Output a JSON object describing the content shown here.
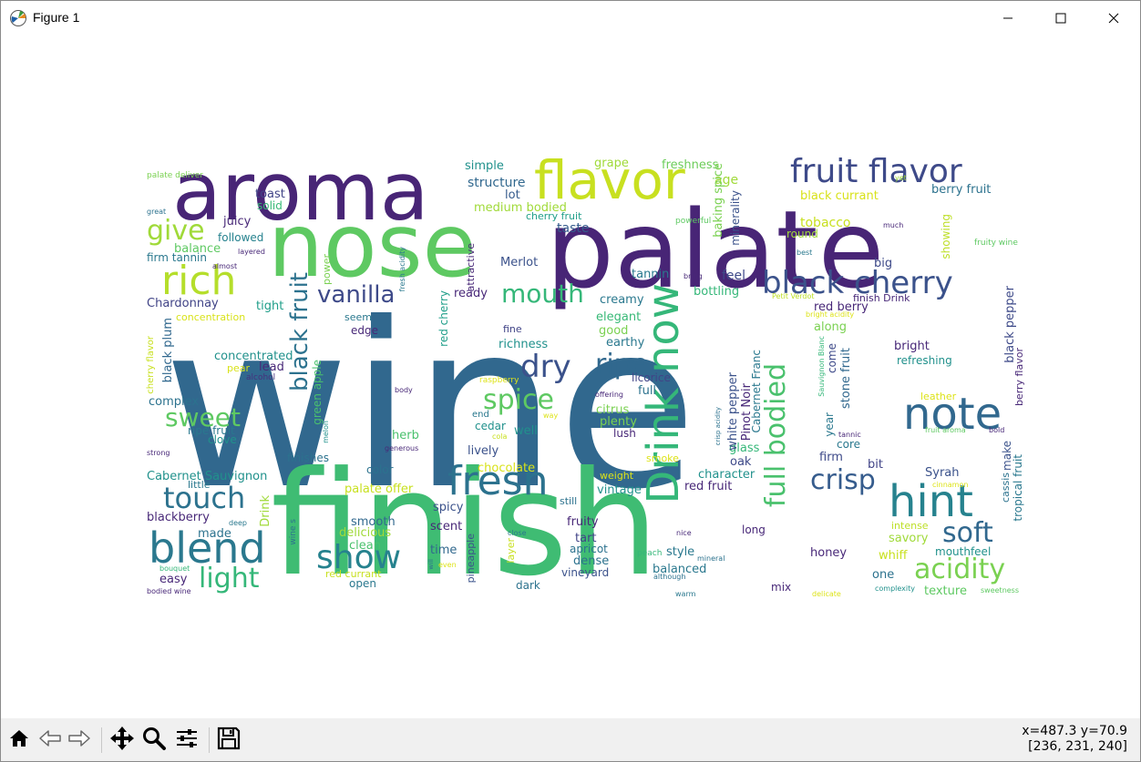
{
  "window": {
    "title": "Figure 1"
  },
  "toolbar": {
    "buttons": [
      {
        "name": "home-icon"
      },
      {
        "name": "back-icon"
      },
      {
        "name": "forward-icon"
      },
      {
        "name": "pan-icon"
      },
      {
        "name": "zoom-icon"
      },
      {
        "name": "configure-subplots-icon"
      },
      {
        "name": "save-icon"
      }
    ],
    "coords_line1": "x=487.3 y=70.9",
    "coords_line2": "[236, 231, 240]"
  },
  "colors": {
    "purple": "#440154",
    "indigo": "#3b528b",
    "blue": "#31688e",
    "teal": "#21918c",
    "green": "#35b779",
    "bright_green": "#5ec962",
    "lime": "#b5de2b",
    "yellow": "#dde318"
  },
  "wordcloud": {
    "words": [
      {
        "text": "wine",
        "c": "#31688e"
      },
      {
        "text": "finish",
        "c": "#3fbc73"
      },
      {
        "text": "palate",
        "c": "#482576"
      },
      {
        "text": "nose",
        "c": "#5ec962"
      },
      {
        "text": "aroma",
        "c": "#482576"
      },
      {
        "text": "flavor",
        "c": "#c8e020"
      },
      {
        "text": "fruit flavor",
        "c": "#3e4a89"
      },
      {
        "text": "black cherry",
        "c": "#3b528b"
      },
      {
        "text": "rich",
        "c": "#b5de2b"
      },
      {
        "text": "give",
        "c": "#a0da39"
      },
      {
        "text": "note",
        "c": "#31688e"
      },
      {
        "text": "hint",
        "c": "#26828e"
      },
      {
        "text": "Drink now",
        "c": "#35b779"
      },
      {
        "text": "fresh",
        "c": "#2c728e"
      },
      {
        "text": "blend",
        "c": "#2a788e"
      },
      {
        "text": "touch",
        "c": "#2c728e"
      },
      {
        "text": "show",
        "c": "#26828e"
      },
      {
        "text": "soft",
        "c": "#31688e"
      },
      {
        "text": "crisp",
        "c": "#365c8d"
      },
      {
        "text": "acidity",
        "c": "#7ad151"
      },
      {
        "text": "light",
        "c": "#35b779"
      },
      {
        "text": "vanilla",
        "c": "#3e4a89"
      },
      {
        "text": "dry",
        "c": "#3b528b"
      },
      {
        "text": "ripe",
        "c": "#31688e"
      },
      {
        "text": "spice",
        "c": "#5ec962"
      },
      {
        "text": "sweet",
        "c": "#5ec962"
      },
      {
        "text": "mouth",
        "c": "#35b779"
      },
      {
        "text": "black fruit",
        "c": "#2c728e"
      },
      {
        "text": "full bodied",
        "c": "#4ac16d"
      },
      {
        "text": "simple",
        "c": "#21918c"
      },
      {
        "text": "structure",
        "c": "#31688e"
      },
      {
        "text": "lot",
        "c": "#365c8d"
      },
      {
        "text": "medium bodied",
        "c": "#a0da39"
      },
      {
        "text": "cherry fruit",
        "c": "#1f9e89"
      },
      {
        "text": "taste",
        "c": "#365c8d"
      },
      {
        "text": "grape",
        "c": "#a0da39"
      },
      {
        "text": "freshness",
        "c": "#6ccd5a"
      },
      {
        "text": "age",
        "c": "#a0da39"
      },
      {
        "text": "baking spice",
        "c": "#7ad151"
      },
      {
        "text": "minerality",
        "c": "#3b528b"
      },
      {
        "text": "black currant",
        "c": "#d8e219"
      },
      {
        "text": "berry fruit",
        "c": "#2c728e"
      },
      {
        "text": "tobacco",
        "c": "#c8e020"
      },
      {
        "text": "round",
        "c": "#a0da39"
      },
      {
        "text": "big",
        "c": "#3e4a89"
      },
      {
        "text": "showing",
        "c": "#bddf26"
      },
      {
        "text": "toast",
        "c": "#414487"
      },
      {
        "text": "solid",
        "c": "#38b977"
      },
      {
        "text": "juicy",
        "c": "#482878"
      },
      {
        "text": "followed",
        "c": "#26828e"
      },
      {
        "text": "balance",
        "c": "#5ec962"
      },
      {
        "text": "firm tannin",
        "c": "#2a788e"
      },
      {
        "text": "Chardonnay",
        "c": "#414487"
      },
      {
        "text": "tight",
        "c": "#1f9e89"
      },
      {
        "text": "concentration",
        "c": "#d8e219"
      },
      {
        "text": "black plum",
        "c": "#31688e"
      },
      {
        "text": "concentrated",
        "c": "#21918c"
      },
      {
        "text": "lead",
        "c": "#482878"
      },
      {
        "text": "pear",
        "c": "#d8e219"
      },
      {
        "text": "alcohol",
        "c": "#46327e"
      },
      {
        "text": "complex",
        "c": "#2c728e"
      },
      {
        "text": "ripe fruit",
        "c": "#2a788e"
      },
      {
        "text": "clove",
        "c": "#21918c"
      },
      {
        "text": "green apple",
        "c": "#4ac16d"
      },
      {
        "text": "finishes",
        "c": "#2c728e"
      },
      {
        "text": "Cabernet Sauvignon",
        "c": "#21918c"
      },
      {
        "text": "blackberry",
        "c": "#482878"
      },
      {
        "text": "made",
        "c": "#2c728e"
      },
      {
        "text": "Drink",
        "c": "#a0da39"
      },
      {
        "text": "easy",
        "c": "#482878"
      },
      {
        "text": "Merlot",
        "c": "#3b528b"
      },
      {
        "text": "ready",
        "c": "#482878"
      },
      {
        "text": "tannin",
        "c": "#2a788e"
      },
      {
        "text": "feel",
        "c": "#3e4a89"
      },
      {
        "text": "bottling",
        "c": "#35b779"
      },
      {
        "text": "creamy",
        "c": "#2a788e"
      },
      {
        "text": "elegant",
        "c": "#38b977"
      },
      {
        "text": "good",
        "c": "#7ad151"
      },
      {
        "text": "earthy",
        "c": "#2a788e"
      },
      {
        "text": "richness",
        "c": "#21918c"
      },
      {
        "text": "fine",
        "c": "#414487"
      },
      {
        "text": "edge",
        "c": "#482878"
      },
      {
        "text": "red cherry",
        "c": "#1f9e89"
      },
      {
        "text": "licorice",
        "c": "#414487"
      },
      {
        "text": "full",
        "c": "#2c728e"
      },
      {
        "text": "citrus",
        "c": "#7ad151"
      },
      {
        "text": "plenty",
        "c": "#7ad151"
      },
      {
        "text": "lush",
        "c": "#482878"
      },
      {
        "text": "herb",
        "c": "#4ac16d"
      },
      {
        "text": "well",
        "c": "#21918c"
      },
      {
        "text": "cedar",
        "c": "#21918c"
      },
      {
        "text": "lively",
        "c": "#3b528b"
      },
      {
        "text": "chocolate",
        "c": "#d8e219"
      },
      {
        "text": "color",
        "c": "#2c728e"
      },
      {
        "text": "palate offer",
        "c": "#c8e020"
      },
      {
        "text": "spicy",
        "c": "#3b528b"
      },
      {
        "text": "scent",
        "c": "#482878"
      },
      {
        "text": "smooth",
        "c": "#31688e"
      },
      {
        "text": "delicious",
        "c": "#a0da39"
      },
      {
        "text": "clean",
        "c": "#4ac16d"
      },
      {
        "text": "time",
        "c": "#31688e"
      },
      {
        "text": "vintage",
        "c": "#21918c"
      },
      {
        "text": "fruity",
        "c": "#482878"
      },
      {
        "text": "tart",
        "c": "#414487"
      },
      {
        "text": "apricot",
        "c": "#2c728e"
      },
      {
        "text": "dense",
        "c": "#2c728e"
      },
      {
        "text": "vineyard",
        "c": "#3b528b"
      },
      {
        "text": "style",
        "c": "#2a788e"
      },
      {
        "text": "balanced",
        "c": "#2a788e"
      },
      {
        "text": "red fruit",
        "c": "#482878"
      },
      {
        "text": "character",
        "c": "#21918c"
      },
      {
        "text": "oak",
        "c": "#3e4a89"
      },
      {
        "text": "glass",
        "c": "#35b779"
      },
      {
        "text": "white pepper",
        "c": "#3b528b"
      },
      {
        "text": "Pinot Noir",
        "c": "#482878"
      },
      {
        "text": "Cabernet Franc",
        "c": "#2a788e"
      },
      {
        "text": "red berry",
        "c": "#482878"
      },
      {
        "text": "along",
        "c": "#7ad151"
      },
      {
        "text": "come",
        "c": "#3e4a89"
      },
      {
        "text": "stone fruit",
        "c": "#31688e"
      },
      {
        "text": "year",
        "c": "#2a788e"
      },
      {
        "text": "firm",
        "c": "#3e4a89"
      },
      {
        "text": "core",
        "c": "#2a788e"
      },
      {
        "text": "bit",
        "c": "#414487"
      },
      {
        "text": "Syrah",
        "c": "#3b528b"
      },
      {
        "text": "bright",
        "c": "#482878"
      },
      {
        "text": "refreshing",
        "c": "#21918c"
      },
      {
        "text": "black pepper",
        "c": "#3e4a89"
      },
      {
        "text": "berry flavor",
        "c": "#482878"
      },
      {
        "text": "cassis",
        "c": "#2c728e"
      },
      {
        "text": "make",
        "c": "#3b528b"
      },
      {
        "text": "tropical fruit",
        "c": "#2a788e"
      },
      {
        "text": "long",
        "c": "#482878"
      },
      {
        "text": "savory",
        "c": "#a0da39"
      },
      {
        "text": "whiff",
        "c": "#c8e020"
      },
      {
        "text": "honey",
        "c": "#482878"
      },
      {
        "text": "one",
        "c": "#2c728e"
      },
      {
        "text": "mouthfeel",
        "c": "#21918c"
      },
      {
        "text": "texture",
        "c": "#5ec962"
      },
      {
        "text": "mix",
        "c": "#482878"
      },
      {
        "text": "pineapple",
        "c": "#3b528b"
      },
      {
        "text": "layer",
        "c": "#c8e020"
      },
      {
        "text": "dark",
        "c": "#2c728e"
      },
      {
        "text": "open",
        "c": "#2a788e"
      },
      {
        "text": "red currant",
        "c": "#c8e020"
      },
      {
        "text": "leather",
        "c": "#dde318"
      },
      {
        "text": "intense",
        "c": "#bddf26"
      },
      {
        "text": "attractive",
        "c": "#482878"
      },
      {
        "text": "power",
        "c": "#7ad151"
      },
      {
        "text": "finish Drink",
        "c": "#482878"
      },
      {
        "text": "fruity wine",
        "c": "#5ec962"
      },
      {
        "text": "palate deliver",
        "c": "#7ad151"
      }
    ],
    "small_words": [
      {
        "text": "great",
        "c": "#2c728e"
      },
      {
        "text": "almost",
        "c": "#482878"
      },
      {
        "text": "layered",
        "c": "#482878"
      },
      {
        "text": "powerful",
        "c": "#5ec962"
      },
      {
        "text": "much",
        "c": "#482878"
      },
      {
        "text": "best",
        "c": "#2a788e"
      },
      {
        "text": "bring",
        "c": "#482878"
      },
      {
        "text": "yet",
        "c": "#a0da39"
      },
      {
        "text": "Petit Verdot",
        "c": "#bddf26"
      },
      {
        "text": "bright acidity",
        "c": "#dde318"
      },
      {
        "text": "Sauvignon Blanc",
        "c": "#35b779"
      },
      {
        "text": "crisp acidity",
        "c": "#2c728e"
      },
      {
        "text": "tannic",
        "c": "#482878"
      },
      {
        "text": "fruit aroma",
        "c": "#5ec962"
      },
      {
        "text": "bold",
        "c": "#482878"
      },
      {
        "text": "cinnamon",
        "c": "#dde318"
      },
      {
        "text": "sweetness",
        "c": "#5ec962"
      },
      {
        "text": "complexity",
        "c": "#21918c"
      },
      {
        "text": "delicate",
        "c": "#dde318"
      },
      {
        "text": "warm",
        "c": "#2a788e"
      },
      {
        "text": "although",
        "c": "#2c728e"
      },
      {
        "text": "mineral",
        "c": "#2c728e"
      },
      {
        "text": "peach",
        "c": "#35b779"
      },
      {
        "text": "nice",
        "c": "#482878"
      },
      {
        "text": "close",
        "c": "#2a788e"
      },
      {
        "text": "even",
        "c": "#dde318"
      },
      {
        "text": "will",
        "c": "#2c728e"
      },
      {
        "text": "generous",
        "c": "#482878"
      },
      {
        "text": "cola",
        "c": "#c8e020"
      },
      {
        "text": "way",
        "c": "#dde318"
      },
      {
        "text": "offering",
        "c": "#482878"
      },
      {
        "text": "raspberry",
        "c": "#dde318"
      },
      {
        "text": "body",
        "c": "#482878"
      },
      {
        "text": "melon",
        "c": "#21918c"
      },
      {
        "text": "strong",
        "c": "#482878"
      },
      {
        "text": "deep",
        "c": "#2a788e"
      },
      {
        "text": "bouquet",
        "c": "#35b779"
      },
      {
        "text": "bodied wine",
        "c": "#482878"
      },
      {
        "text": "seem",
        "c": "#2a788e"
      },
      {
        "text": "wine s",
        "c": "#2c728e"
      },
      {
        "text": "little",
        "c": "#2a788e"
      },
      {
        "text": "fresh acidity",
        "c": "#2a788e"
      },
      {
        "text": "end",
        "c": "#2a788e"
      },
      {
        "text": "smoke",
        "c": "#dde318"
      },
      {
        "text": "weight",
        "c": "#dde318"
      },
      {
        "text": "still",
        "c": "#2c728e"
      },
      {
        "text": "cherry flavor",
        "c": "#c8e020"
      }
    ]
  }
}
